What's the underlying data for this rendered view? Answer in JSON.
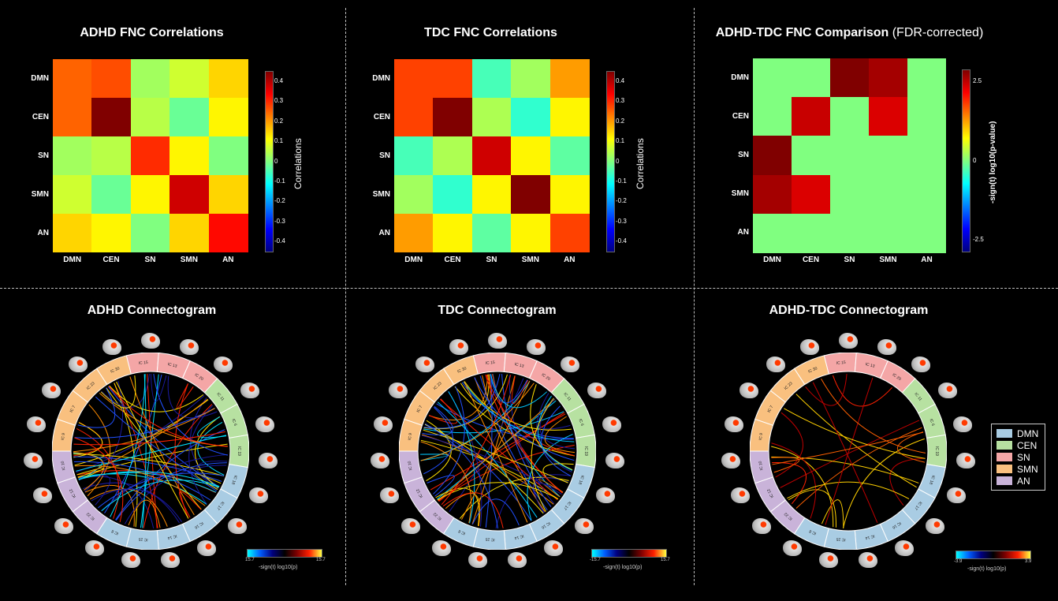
{
  "panels": {
    "adhd_fnc": {
      "title": "ADHD FNC Correlations"
    },
    "tdc_fnc": {
      "title": "TDC FNC Correlations"
    },
    "diff_fnc": {
      "title_bold": "ADHD-TDC FNC Comparison",
      "title_rest": " (FDR-corrected)"
    },
    "adhd_conn": {
      "title": "ADHD Connectogram"
    },
    "tdc_conn": {
      "title": "TDC Connectogram"
    },
    "diff_conn": {
      "title": "ADHD-TDC Connectogram"
    }
  },
  "networks": [
    "DMN",
    "CEN",
    "SN",
    "SMN",
    "AN"
  ],
  "colorbar_corr": {
    "label": "Correlations",
    "ticks": [
      "0.4",
      "0.3",
      "0.2",
      "0.1",
      "0",
      "-0.1",
      "-0.2",
      "-0.3",
      "-0.4"
    ]
  },
  "colorbar_diff": {
    "label": "-sign(t) log10(p-value)",
    "ticks": [
      "2.5",
      "0",
      "-2.5"
    ]
  },
  "chart_data": [
    {
      "type": "heatmap",
      "title": "ADHD FNC Correlations",
      "rows": [
        "DMN",
        "CEN",
        "SN",
        "SMN",
        "AN"
      ],
      "cols": [
        "DMN",
        "CEN",
        "SN",
        "SMN",
        "AN"
      ],
      "values": [
        [
          0.25,
          0.27,
          0.03,
          0.07,
          0.15
        ],
        [
          0.25,
          0.45,
          0.05,
          -0.02,
          0.12
        ],
        [
          0.03,
          0.05,
          0.3,
          0.12,
          0.0
        ],
        [
          0.07,
          -0.02,
          0.12,
          0.38,
          0.15
        ],
        [
          0.15,
          0.12,
          0.0,
          0.15,
          0.33
        ]
      ],
      "zlim": [
        -0.45,
        0.45
      ],
      "zlabel": "Correlations"
    },
    {
      "type": "heatmap",
      "title": "TDC FNC Correlations",
      "rows": [
        "DMN",
        "CEN",
        "SN",
        "SMN",
        "AN"
      ],
      "cols": [
        "DMN",
        "CEN",
        "SN",
        "SMN",
        "AN"
      ],
      "values": [
        [
          0.28,
          0.28,
          -0.05,
          0.03,
          0.2
        ],
        [
          0.28,
          0.45,
          0.04,
          -0.07,
          0.12
        ],
        [
          -0.05,
          0.04,
          0.38,
          0.12,
          -0.03
        ],
        [
          0.03,
          -0.07,
          0.12,
          0.45,
          0.12
        ],
        [
          0.2,
          0.12,
          -0.03,
          0.12,
          0.28
        ]
      ],
      "zlim": [
        -0.45,
        0.45
      ],
      "zlabel": "Correlations"
    },
    {
      "type": "heatmap",
      "title": "ADHD-TDC FNC Comparison (FDR-corrected)",
      "rows": [
        "DMN",
        "CEN",
        "SN",
        "SMN",
        "AN"
      ],
      "cols": [
        "DMN",
        "CEN",
        "SN",
        "SMN",
        "AN"
      ],
      "values": [
        [
          0,
          0,
          2.8,
          2.6,
          0
        ],
        [
          0,
          2.4,
          0,
          2.3,
          0
        ],
        [
          2.8,
          0,
          0,
          0,
          0
        ],
        [
          2.6,
          2.3,
          0,
          0,
          0
        ],
        [
          0,
          0,
          0,
          0,
          0
        ]
      ],
      "zlim": [
        -2.8,
        2.8
      ],
      "zlabel": "-sign(t) log10(p-value)"
    }
  ],
  "connectogram_legend": [
    {
      "label": "DMN",
      "color": "#a9cce3"
    },
    {
      "label": "CEN",
      "color": "#b7e1a1"
    },
    {
      "label": "SN",
      "color": "#f4a6a6"
    },
    {
      "label": "SMN",
      "color": "#f9c07f"
    },
    {
      "label": "AN",
      "color": "#c9b3d9"
    }
  ],
  "connectogram_bars": [
    {
      "left": "15.7",
      "right": "15.7",
      "label": "-sign(t) log10(p)"
    },
    {
      "left": "-15.7",
      "right": "15.7",
      "label": "-sign(t) log10(p)"
    },
    {
      "left": "-3.9",
      "right": "3.9",
      "label": "-sign(t) log10(p)"
    }
  ],
  "ic_labels": {
    "adhd": [
      "IC 15",
      "IC 13",
      "IC 20",
      "IC 11",
      "IC 6",
      "IC 19",
      "IC 18",
      "IC 17",
      "IC 16",
      "IC 14",
      "IC 25",
      "IC 8",
      "IC 22",
      "IC 12",
      "IC 10",
      "IC 9",
      "IC 7",
      "IC 23",
      "IC 30"
    ],
    "tdc": [
      "IC 15",
      "IC 13",
      "IC 20",
      "IC 11",
      "IC 6",
      "IC 19",
      "IC 18",
      "IC 17",
      "IC 16",
      "IC 14",
      "IC 25",
      "IC 8",
      "IC 22",
      "IC 12",
      "IC 10",
      "IC 9",
      "IC 7",
      "IC 23",
      "IC 30"
    ],
    "diff": [
      "IC 15",
      "IC 13",
      "IC 20",
      "IC 11",
      "IC 6",
      "IC 19",
      "IC 18",
      "IC 17",
      "IC 16",
      "IC 14",
      "IC 25",
      "IC 8",
      "IC 22",
      "IC 12",
      "IC 10",
      "IC 9",
      "IC 7",
      "IC 23",
      "IC 30"
    ]
  }
}
